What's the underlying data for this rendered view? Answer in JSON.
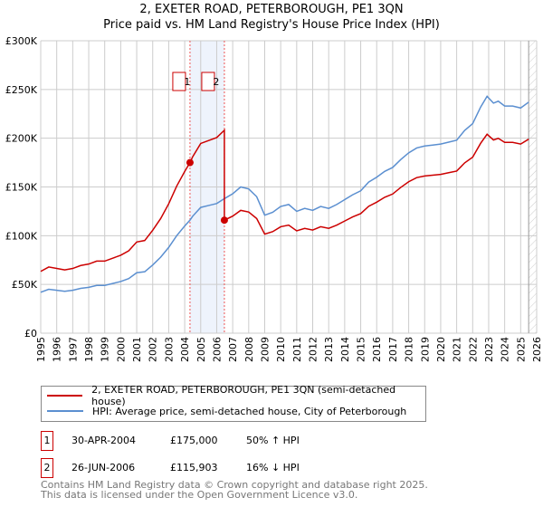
{
  "chart_data": {
    "type": "line",
    "title": "2, EXETER ROAD, PETERBOROUGH, PE1 3QN",
    "subtitle": "Price paid vs. HM Land Registry's House Price Index (HPI)",
    "ylim": [
      0,
      300000
    ],
    "xlim": [
      1995,
      2026
    ],
    "y_ticks": [
      {
        "v": 0,
        "l": "£0"
      },
      {
        "v": 50000,
        "l": "£50K"
      },
      {
        "v": 100000,
        "l": "£100K"
      },
      {
        "v": 150000,
        "l": "£150K"
      },
      {
        "v": 200000,
        "l": "£200K"
      },
      {
        "v": 250000,
        "l": "£250K"
      },
      {
        "v": 300000,
        "l": "£300K"
      }
    ],
    "x_ticks": [
      "1995",
      "1996",
      "1997",
      "1998",
      "1999",
      "2000",
      "2001",
      "2002",
      "2003",
      "2004",
      "2005",
      "2006",
      "2007",
      "2008",
      "2009",
      "2010",
      "2011",
      "2012",
      "2013",
      "2014",
      "2015",
      "2016",
      "2017",
      "2018",
      "2019",
      "2020",
      "2021",
      "2022",
      "2023",
      "2024",
      "2025",
      "2026"
    ],
    "grid": true,
    "forecast_start": 2025.5,
    "colors": {
      "property": "#cc0000",
      "hpi": "#5b8fd0",
      "band": "#eef3fc"
    },
    "hpi": {
      "x": [
        1995,
        1995.5,
        1996,
        1996.5,
        1997,
        1997.5,
        1998,
        1998.5,
        1999,
        1999.5,
        2000,
        2000.5,
        2001,
        2001.5,
        2002,
        2002.5,
        2003,
        2003.5,
        2004,
        2004.33,
        2004.5,
        2005,
        2005.5,
        2006,
        2006.48,
        2007,
        2007.5,
        2008,
        2008.5,
        2009,
        2009.5,
        2010,
        2010.5,
        2011,
        2011.5,
        2012,
        2012.5,
        2013,
        2013.5,
        2014,
        2014.5,
        2015,
        2015.5,
        2016,
        2016.5,
        2017,
        2017.5,
        2018,
        2018.5,
        2019,
        2019.5,
        2020,
        2020.5,
        2021,
        2021.5,
        2022,
        2022.5,
        2022.9,
        2023.3,
        2023.6,
        2024,
        2024.5,
        2025,
        2025.5
      ],
      "y": [
        42,
        45,
        44,
        43,
        44,
        46,
        47,
        49,
        49,
        51,
        53,
        56,
        62,
        63,
        70,
        78,
        88,
        100,
        110,
        116,
        120,
        129,
        131,
        133,
        138,
        143,
        150,
        148,
        140,
        121,
        124,
        130,
        132,
        125,
        128,
        126,
        130,
        128,
        132,
        137,
        142,
        146,
        155,
        160,
        166,
        170,
        178,
        185,
        190,
        192,
        193,
        194,
        196,
        198,
        208,
        215,
        232,
        243,
        236,
        238,
        233,
        233,
        231,
        237
      ]
    },
    "sales": [
      {
        "id": "1",
        "x": 2004.33,
        "date": "30-APR-2004",
        "price": "£175,000",
        "value": 175000,
        "hpi_diff": "50% ↑ HPI"
      },
      {
        "id": "2",
        "x": 2006.48,
        "date": "26-JUN-2006",
        "price": "£115,903",
        "value": 115903,
        "hpi_diff": "16% ↓ HPI"
      }
    ],
    "legend": [
      "2, EXETER ROAD, PETERBOROUGH, PE1 3QN (semi-detached house)",
      "HPI: Average price, semi-detached house, City of Peterborough"
    ]
  },
  "footer": [
    "Contains HM Land Registry data © Crown copyright and database right 2025.",
    "This data is licensed under the Open Government Licence v3.0."
  ]
}
